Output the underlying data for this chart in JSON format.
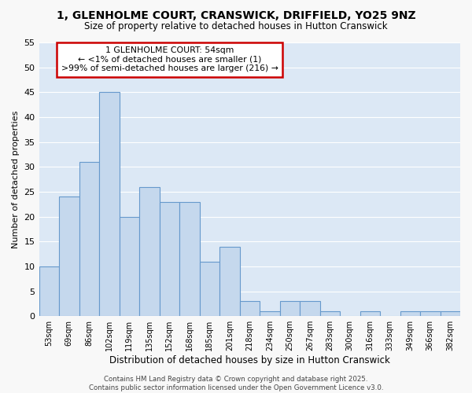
{
  "title": "1, GLENHOLME COURT, CRANSWICK, DRIFFIELD, YO25 9NZ",
  "subtitle": "Size of property relative to detached houses in Hutton Cranswick",
  "xlabel": "Distribution of detached houses by size in Hutton Cranswick",
  "ylabel": "Number of detached properties",
  "categories": [
    "53sqm",
    "69sqm",
    "86sqm",
    "102sqm",
    "119sqm",
    "135sqm",
    "152sqm",
    "168sqm",
    "185sqm",
    "201sqm",
    "218sqm",
    "234sqm",
    "250sqm",
    "267sqm",
    "283sqm",
    "300sqm",
    "316sqm",
    "333sqm",
    "349sqm",
    "366sqm",
    "382sqm"
  ],
  "values": [
    10,
    24,
    31,
    45,
    20,
    26,
    23,
    23,
    11,
    14,
    3,
    1,
    3,
    3,
    1,
    0,
    1,
    0,
    1,
    1,
    1
  ],
  "bar_color": "#c5d8ed",
  "bar_edge_color": "#6699cc",
  "fig_background_color": "#f8f8f8",
  "ax_background_color": "#dce8f5",
  "grid_color": "#ffffff",
  "annotation_box_text": "1 GLENHOLME COURT: 54sqm\n← <1% of detached houses are smaller (1)\n>99% of semi-detached houses are larger (216) →",
  "annotation_box_color": "#cc0000",
  "footer_line1": "Contains HM Land Registry data © Crown copyright and database right 2025.",
  "footer_line2": "Contains public sector information licensed under the Open Government Licence v3.0.",
  "ylim": [
    0,
    55
  ],
  "yticks": [
    0,
    5,
    10,
    15,
    20,
    25,
    30,
    35,
    40,
    45,
    50,
    55
  ]
}
